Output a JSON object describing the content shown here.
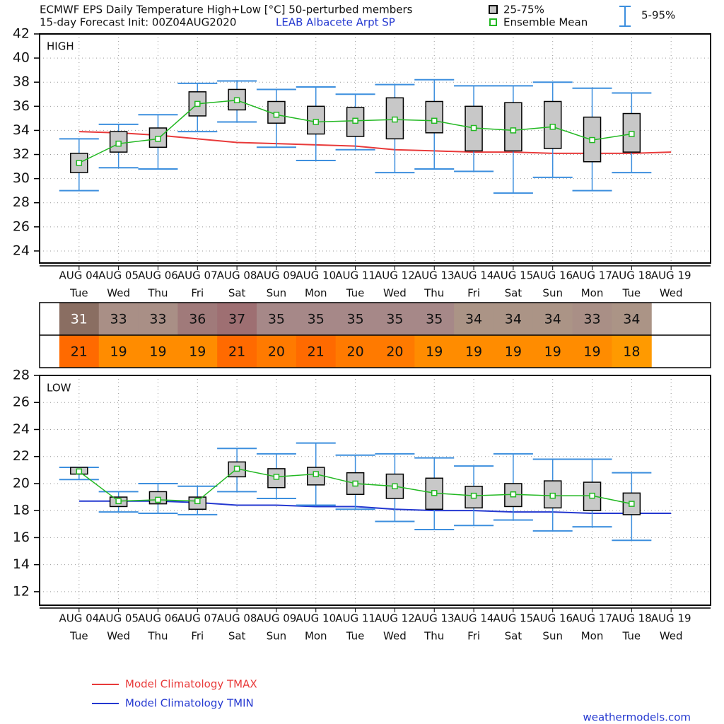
{
  "header": {
    "title": "ECMWF EPS Daily Temperature High+Low [°C]  50-perturbed members",
    "subtitle": "15-day Forecast Init: 00Z04AUG2020",
    "station": "LEAB  Albacete Arpt SP"
  },
  "legend": {
    "box": "25-75%",
    "mean": "Ensemble Mean",
    "whisker": "5-95%",
    "box_color": "#c8c8c8",
    "mean_color": "#22b822",
    "whisker_color": "#3d8fde"
  },
  "chart_data": [
    {
      "type": "box",
      "panel_label": "HIGH",
      "categories": [
        "AUG 04",
        "AUG 05",
        "AUG 06",
        "AUG 07",
        "AUG 08",
        "AUG 09",
        "AUG 10",
        "AUG 11",
        "AUG 12",
        "AUG 13",
        "AUG 14",
        "AUG 15",
        "AUG 16",
        "AUG 17",
        "AUG 18",
        "AUG 19"
      ],
      "weekdays": [
        "Tue",
        "Wed",
        "Thu",
        "Fri",
        "Sat",
        "Sun",
        "Mon",
        "Tue",
        "Wed",
        "Thu",
        "Fri",
        "Sat",
        "Sun",
        "Mon",
        "Tue",
        "Wed"
      ],
      "ylim": [
        23,
        42
      ],
      "yticks": [
        24,
        26,
        28,
        30,
        32,
        34,
        36,
        38,
        40,
        42
      ],
      "grid": true,
      "p5": [
        29.0,
        30.9,
        30.8,
        33.9,
        34.7,
        32.6,
        31.5,
        32.4,
        30.5,
        30.8,
        30.6,
        28.8,
        30.1,
        29.0,
        30.5,
        null
      ],
      "p25": [
        30.5,
        32.2,
        32.6,
        35.2,
        35.7,
        34.6,
        33.7,
        33.5,
        33.3,
        33.8,
        32.3,
        32.3,
        32.5,
        31.4,
        32.2,
        null
      ],
      "mean": [
        31.3,
        32.9,
        33.3,
        36.2,
        36.5,
        35.3,
        34.7,
        34.8,
        34.9,
        34.8,
        34.2,
        34.0,
        34.3,
        33.2,
        33.7,
        null
      ],
      "p75": [
        32.1,
        33.9,
        34.2,
        37.2,
        37.4,
        36.4,
        36.0,
        35.9,
        36.7,
        36.4,
        36.0,
        36.3,
        36.4,
        35.1,
        35.4,
        null
      ],
      "p95": [
        33.3,
        34.5,
        35.3,
        37.9,
        38.1,
        37.4,
        37.6,
        37.0,
        37.8,
        38.2,
        37.7,
        37.7,
        38.0,
        37.5,
        37.1,
        null
      ],
      "series": [
        {
          "name": "Model Climatology TMAX",
          "color": "#e83a3a",
          "values": [
            33.9,
            33.8,
            33.6,
            33.3,
            33.0,
            32.9,
            32.8,
            32.7,
            32.4,
            32.3,
            32.2,
            32.2,
            32.1,
            32.1,
            32.1,
            32.2
          ]
        }
      ]
    },
    {
      "type": "box",
      "panel_label": "LOW",
      "categories": [
        "AUG 04",
        "AUG 05",
        "AUG 06",
        "AUG 07",
        "AUG 08",
        "AUG 09",
        "AUG 10",
        "AUG 11",
        "AUG 12",
        "AUG 13",
        "AUG 14",
        "AUG 15",
        "AUG 16",
        "AUG 17",
        "AUG 18",
        "AUG 19"
      ],
      "weekdays": [
        "Tue",
        "Wed",
        "Thu",
        "Fri",
        "Sat",
        "Sun",
        "Mon",
        "Tue",
        "Wed",
        "Thu",
        "Fri",
        "Sat",
        "Sun",
        "Mon",
        "Tue",
        "Wed"
      ],
      "ylim": [
        11,
        28
      ],
      "yticks": [
        12,
        14,
        16,
        18,
        20,
        22,
        24,
        26,
        28
      ],
      "grid": true,
      "p5": [
        20.3,
        17.9,
        17.8,
        17.7,
        19.4,
        18.9,
        18.4,
        18.1,
        17.2,
        16.6,
        16.9,
        17.3,
        16.5,
        16.8,
        15.8,
        null
      ],
      "p25": [
        20.7,
        18.3,
        18.5,
        18.1,
        20.5,
        19.7,
        19.9,
        19.2,
        18.9,
        18.1,
        18.2,
        18.3,
        18.2,
        18.0,
        17.7,
        null
      ],
      "mean": [
        20.9,
        18.7,
        18.8,
        18.7,
        21.1,
        20.5,
        20.7,
        20.0,
        19.8,
        19.3,
        19.1,
        19.2,
        19.1,
        19.1,
        18.5,
        null
      ],
      "p75": [
        21.2,
        19.0,
        19.4,
        19.0,
        21.6,
        21.1,
        21.2,
        20.8,
        20.7,
        20.4,
        19.8,
        20.0,
        20.2,
        20.1,
        19.3,
        null
      ],
      "p95": [
        21.2,
        19.4,
        20.0,
        19.8,
        22.6,
        22.2,
        23.0,
        22.1,
        22.2,
        21.9,
        21.3,
        22.2,
        21.8,
        21.8,
        20.8,
        null
      ],
      "series": [
        {
          "name": "Model Climatology TMIN",
          "color": "#2438d0",
          "values": [
            18.7,
            18.7,
            18.7,
            18.6,
            18.4,
            18.4,
            18.3,
            18.3,
            18.1,
            18.0,
            18.0,
            17.9,
            17.9,
            17.8,
            17.8,
            17.8
          ]
        }
      ]
    }
  ],
  "table": {
    "high": {
      "values": [
        31,
        33,
        33,
        36,
        37,
        35,
        35,
        35,
        35,
        35,
        34,
        34,
        34,
        33,
        34
      ],
      "colors": [
        "#8a6e62",
        "#a98f86",
        "#a98f86",
        "#a07a7a",
        "#9e6f72",
        "#a68888",
        "#a68888",
        "#a68888",
        "#a68888",
        "#a68888",
        "#ab9486",
        "#ab9486",
        "#ab9486",
        "#a98f86",
        "#ab9486"
      ]
    },
    "low": {
      "values": [
        21,
        19,
        19,
        19,
        21,
        20,
        21,
        20,
        20,
        19,
        19,
        19,
        19,
        19,
        18
      ],
      "colors": [
        "#ff6a00",
        "#ff8c00",
        "#ff8c00",
        "#ff8c00",
        "#ff6a00",
        "#ff7a00",
        "#ff6a00",
        "#ff7a00",
        "#ff7a00",
        "#ff8c00",
        "#ff8c00",
        "#ff8c00",
        "#ff8c00",
        "#ff8c00",
        "#ff9a00"
      ]
    }
  },
  "footer": "weathermodels.com"
}
